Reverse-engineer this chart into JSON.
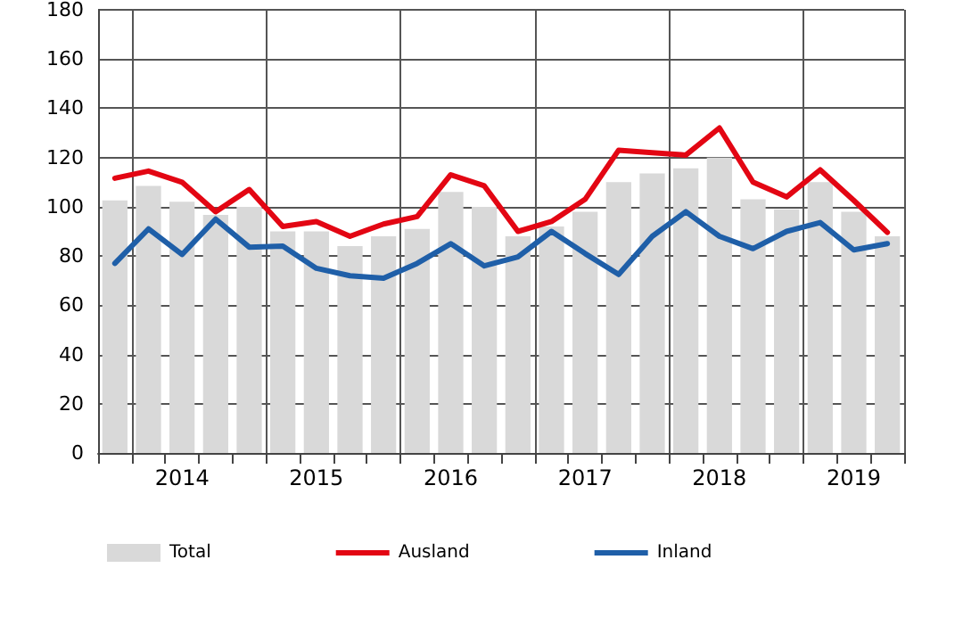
{
  "chart_data": {
    "type": "bar",
    "categories": [
      null,
      null,
      "2014",
      null,
      null,
      null,
      "2015",
      null,
      null,
      null,
      "2016",
      null,
      null,
      null,
      "2017",
      null,
      null,
      null,
      "2018",
      null,
      null,
      null,
      "2019",
      null
    ],
    "series": [
      {
        "name": "Total",
        "color": "#d9d9d9",
        "values": [
          102.6,
          108.5,
          102,
          96.7,
          100,
          90,
          90,
          84,
          88,
          91,
          106,
          100,
          88,
          92,
          98,
          110,
          113.5,
          115.6,
          120,
          103,
          99,
          110,
          98,
          88
        ]
      },
      {
        "name": "Ausland",
        "type": "line",
        "color": "#e30613",
        "values": [
          111.6,
          114.5,
          110,
          98,
          107,
          92,
          94,
          88,
          93,
          96,
          113,
          108.5,
          90,
          94,
          103,
          123,
          122,
          121,
          132,
          110,
          104,
          115,
          102.6,
          89.6
        ]
      },
      {
        "name": "Inland",
        "type": "line",
        "color": "#1f5fa8",
        "values": [
          77,
          91,
          80.6,
          95,
          83.6,
          84,
          75,
          72,
          71,
          77,
          85,
          76,
          79.6,
          90,
          81,
          72.5,
          88,
          98,
          88,
          83,
          90,
          93.6,
          82.5,
          85
        ]
      }
    ],
    "ylim": [
      0,
      180
    ],
    "yticks": [
      0,
      20,
      40,
      60,
      80,
      100,
      120,
      140,
      160,
      180
    ],
    "grid": true,
    "legend": "bottom",
    "marker": "none",
    "line_style": "solid"
  }
}
